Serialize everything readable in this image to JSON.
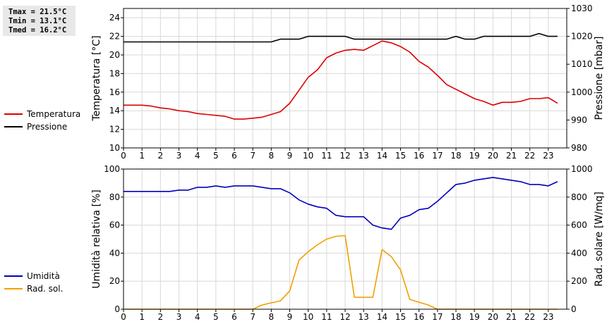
{
  "stats": {
    "tmax": "Tmax = 21.5°C",
    "tmin": "Tmin = 13.1°C",
    "tmed": "Tmed = 16.2°C"
  },
  "chart_data": [
    {
      "type": "line",
      "ylabel": "Temperatura [°C]",
      "y2label": "Pressione [mbar]",
      "ylim": [
        10,
        25
      ],
      "y2lim": [
        980,
        1030
      ],
      "yticks": [
        10,
        12,
        14,
        16,
        18,
        20,
        22,
        24
      ],
      "y2ticks": [
        980,
        990,
        1000,
        1010,
        1020,
        1030
      ],
      "xlim": [
        0,
        24
      ],
      "xticks": [
        "0",
        "1",
        "2",
        "3",
        "4",
        "5",
        "6",
        "7",
        "8",
        "9",
        "10",
        "11",
        "12",
        "13",
        "14",
        "15",
        "16",
        "17",
        "18",
        "19",
        "20",
        "21",
        "22",
        "23"
      ],
      "grid": true,
      "legend_position": "left",
      "series": [
        {
          "name": "Temperatura",
          "axis": "left",
          "color": "#dd0000",
          "x": [
            0,
            0.5,
            1,
            1.5,
            2,
            2.5,
            3,
            3.5,
            4,
            4.5,
            5,
            5.5,
            6,
            6.5,
            7,
            7.5,
            8,
            8.5,
            9,
            9.5,
            10,
            10.5,
            11,
            11.5,
            12,
            12.5,
            13,
            13.5,
            14,
            14.5,
            15,
            15.5,
            16,
            16.5,
            17,
            17.5,
            18,
            18.5,
            19,
            19.5,
            20,
            20.5,
            21,
            21.5,
            22,
            22.5,
            23,
            23.5
          ],
          "values": [
            14.6,
            14.6,
            14.6,
            14.5,
            14.3,
            14.2,
            14.0,
            13.9,
            13.7,
            13.6,
            13.5,
            13.4,
            13.1,
            13.1,
            13.2,
            13.3,
            13.6,
            13.9,
            14.8,
            16.2,
            17.6,
            18.4,
            19.7,
            20.2,
            20.5,
            20.6,
            20.5,
            21.0,
            21.5,
            21.3,
            20.9,
            20.3,
            19.3,
            18.7,
            17.8,
            16.8,
            16.3,
            15.8,
            15.3,
            15.0,
            14.6,
            14.9,
            14.9,
            15.0,
            15.3,
            15.3,
            15.4,
            14.8
          ]
        },
        {
          "name": "Pressione",
          "axis": "right",
          "color": "#000000",
          "x": [
            0,
            1,
            2,
            3,
            4,
            5,
            6,
            7,
            8,
            8.5,
            9,
            9.5,
            10,
            11,
            12,
            12.5,
            13,
            14,
            15,
            16,
            17,
            17.5,
            18,
            18.5,
            19,
            19.5,
            20,
            21,
            22,
            22.5,
            23,
            23.5
          ],
          "values": [
            1018,
            1018,
            1018,
            1018,
            1018,
            1018,
            1018,
            1018,
            1018,
            1019,
            1019,
            1019,
            1020,
            1020,
            1020,
            1019,
            1019,
            1019,
            1019,
            1019,
            1019,
            1019,
            1020,
            1019,
            1019,
            1020,
            1020,
            1020,
            1020,
            1021,
            1020,
            1020
          ]
        }
      ]
    },
    {
      "type": "line",
      "ylabel": "Umidità relativa [%]",
      "y2label": "Rad. solare [W/mq]",
      "ylim": [
        0,
        100
      ],
      "y2lim": [
        0,
        1000
      ],
      "yticks": [
        0,
        20,
        40,
        60,
        80,
        100
      ],
      "y2ticks": [
        0,
        200,
        400,
        600,
        800,
        1000
      ],
      "xlim": [
        0,
        24
      ],
      "xticks": [
        "0",
        "1",
        "2",
        "3",
        "4",
        "5",
        "6",
        "7",
        "8",
        "9",
        "10",
        "11",
        "12",
        "13",
        "14",
        "15",
        "16",
        "17",
        "18",
        "19",
        "20",
        "21",
        "22",
        "23"
      ],
      "grid": true,
      "legend_position": "left",
      "series": [
        {
          "name": "Umidità",
          "axis": "left",
          "color": "#0000bb",
          "x": [
            0,
            0.5,
            1,
            1.5,
            2,
            2.5,
            3,
            3.5,
            4,
            4.5,
            5,
            5.5,
            6,
            6.5,
            7,
            7.5,
            8,
            8.5,
            9,
            9.5,
            10,
            10.5,
            11,
            11.5,
            12,
            12.5,
            13,
            13.5,
            14,
            14.5,
            15,
            15.5,
            16,
            16.5,
            17,
            17.5,
            18,
            18.5,
            19,
            19.5,
            20,
            20.5,
            21,
            21.5,
            22,
            22.5,
            23,
            23.5
          ],
          "values": [
            84,
            84,
            84,
            84,
            84,
            84,
            85,
            85,
            87,
            87,
            88,
            87,
            88,
            88,
            88,
            87,
            86,
            86,
            83,
            78,
            75,
            73,
            72,
            67,
            66,
            66,
            66,
            60,
            58,
            57,
            65,
            67,
            71,
            72,
            77,
            83,
            89,
            90,
            92,
            93,
            94,
            93,
            92,
            91,
            89,
            89,
            88,
            91
          ]
        },
        {
          "name": "Rad. sol.",
          "axis": "right",
          "color": "#f0a000",
          "x": [
            0,
            0.5,
            1,
            1.5,
            2,
            2.5,
            3,
            3.5,
            4,
            4.5,
            5,
            5.5,
            6,
            6.5,
            7,
            7.5,
            8,
            8.5,
            9,
            9.5,
            10,
            10.5,
            11,
            11.5,
            12,
            12.5,
            13,
            13.5,
            14,
            14.5,
            15,
            15.5,
            16,
            16.5,
            17,
            17.5,
            18,
            18.5,
            19,
            19.5,
            20,
            20.5,
            21,
            21.5,
            22,
            22.5,
            23,
            23.5
          ],
          "values": [
            0,
            0,
            0,
            0,
            0,
            0,
            0,
            0,
            0,
            0,
            0,
            0,
            0,
            0,
            0,
            30,
            45,
            60,
            130,
            350,
            410,
            460,
            500,
            520,
            525,
            85,
            85,
            85,
            425,
            375,
            280,
            70,
            50,
            30,
            0,
            0,
            0,
            0,
            0,
            0,
            0,
            0,
            0,
            0,
            0,
            0,
            0,
            0
          ]
        }
      ]
    }
  ]
}
